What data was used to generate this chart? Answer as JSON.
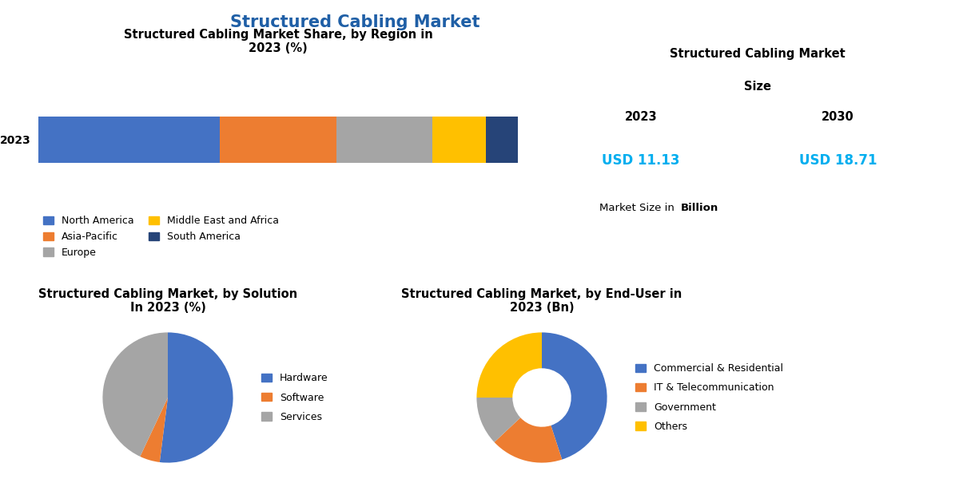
{
  "main_title": "Structured Cabling Market",
  "main_title_color": "#1f5fa6",
  "bar_title": "Structured Cabling Market Share, by Region in\n2023 (%)",
  "bar_year_label": "2023",
  "bar_segments": [
    {
      "label": "North America",
      "value": 34,
      "color": "#4472c4"
    },
    {
      "label": "Asia-Pacific",
      "value": 22,
      "color": "#ed7d31"
    },
    {
      "label": "Europe",
      "value": 18,
      "color": "#a5a5a5"
    },
    {
      "label": "Middle East and Africa",
      "value": 10,
      "color": "#ffc000"
    },
    {
      "label": "South America",
      "value": 6,
      "color": "#264478"
    }
  ],
  "size_title_line1": "Structured Cabling Market",
  "size_title_line2": "Size",
  "size_year_2023": "2023",
  "size_year_2030": "2030",
  "size_val_2023": "USD 11.13",
  "size_val_2030": "USD 18.71",
  "size_note_prefix": "Market Size in ",
  "size_note_bold": "Billion",
  "size_val_color": "#00aeef",
  "pie1_title": "Structured Cabling Market, by Solution\nIn 2023 (%)",
  "pie1_segments": [
    {
      "label": "Hardware",
      "value": 52,
      "color": "#4472c4"
    },
    {
      "label": "Software",
      "value": 5,
      "color": "#ed7d31"
    },
    {
      "label": "Services",
      "value": 43,
      "color": "#a5a5a5"
    }
  ],
  "pie2_title": "Structured Cabling Market, by End-User in\n2023 (Bn)",
  "pie2_segments": [
    {
      "label": "Commercial & Residential",
      "value": 45,
      "color": "#4472c4"
    },
    {
      "label": "IT & Telecommunication",
      "value": 18,
      "color": "#ed7d31"
    },
    {
      "label": "Government",
      "value": 12,
      "color": "#a5a5a5"
    },
    {
      "label": "Others",
      "value": 25,
      "color": "#ffc000"
    }
  ],
  "bg_color": "#ffffff",
  "text_color": "#000000",
  "legend_fontsize": 9,
  "title_fontsize": 10.5,
  "main_title_fontsize": 15
}
